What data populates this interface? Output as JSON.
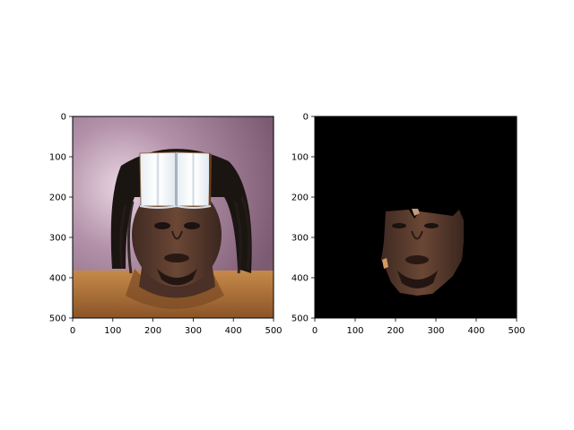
{
  "figure": {
    "panels": [
      {
        "name": "left",
        "subject": "photo of a man with dreadlocks and an open book icon pasted over his forehead",
        "x_ticks": [
          "0",
          "100",
          "200",
          "300",
          "400",
          "500"
        ],
        "y_ticks": [
          "0",
          "100",
          "200",
          "300",
          "400",
          "500"
        ],
        "xlim": [
          0,
          500
        ],
        "ylim": [
          500,
          0
        ]
      },
      {
        "name": "right",
        "subject": "segmented face region on a black background",
        "x_ticks": [
          "0",
          "100",
          "200",
          "300",
          "400",
          "500"
        ],
        "y_ticks": [
          "0",
          "100",
          "200",
          "300",
          "400",
          "500"
        ],
        "xlim": [
          0,
          500
        ],
        "ylim": [
          500,
          0
        ]
      }
    ]
  },
  "colors": {
    "axes_frame": "#000000",
    "mask_background": "#000000",
    "skin": "#5a3a2c",
    "jersey": "#b77a3c",
    "background_blur": "#9b7f93"
  }
}
